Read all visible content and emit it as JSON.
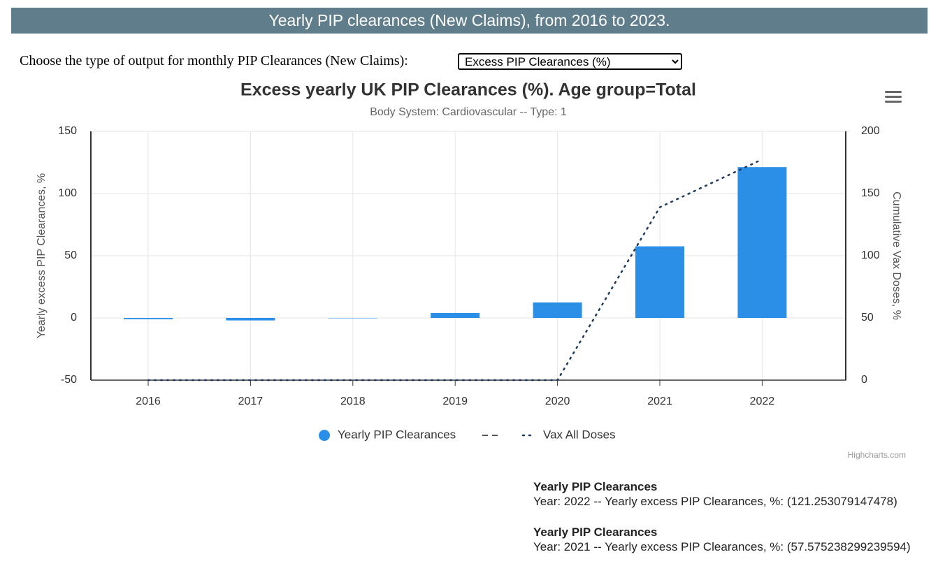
{
  "header": {
    "title": "Yearly PIP clearances (New Claims), from 2016 to 2023."
  },
  "selector": {
    "label": "Choose the type of output for monthly PIP Clearances (New Claims):",
    "selected": "Excess PIP Clearances (%)"
  },
  "chart_data": {
    "type": "bar",
    "title": "Excess yearly UK PIP Clearances (%). Age group=Total",
    "subtitle": "Body System: Cardiovascular -- Type: 1",
    "categories": [
      "2016",
      "2017",
      "2018",
      "2019",
      "2020",
      "2021",
      "2022"
    ],
    "series": [
      {
        "name": "Yearly PIP Clearances",
        "type": "bar",
        "color": "#2b8fe8",
        "values": [
          -1,
          -2,
          0,
          4,
          12.5,
          57.575238299239594,
          121.253079147478
        ]
      },
      {
        "name": "Vax All Doses",
        "type": "line",
        "axis": "y2",
        "color": "#1f3a5f",
        "values": [
          0,
          0,
          0,
          0,
          0,
          139,
          177.5
        ]
      }
    ],
    "y_label": "Yearly excess PIP Clearances, %",
    "y2_label": "Cumulative Vax Doses, %",
    "ylim": [
      -50,
      150
    ],
    "yticks": [
      -50,
      0,
      50,
      100,
      150
    ],
    "y2lim": [
      0,
      200
    ],
    "y2ticks": [
      0,
      50,
      100,
      150,
      200
    ],
    "grid": true,
    "legend": "bottom"
  },
  "credits": "Highcharts.com",
  "info": [
    {
      "title": "Yearly PIP Clearances",
      "text": "Year: 2022 -- Yearly excess PIP Clearances, %: (121.253079147478)"
    },
    {
      "title": "Yearly PIP Clearances",
      "text": "Year: 2021 -- Yearly excess PIP Clearances, %: (57.575238299239594)"
    }
  ]
}
